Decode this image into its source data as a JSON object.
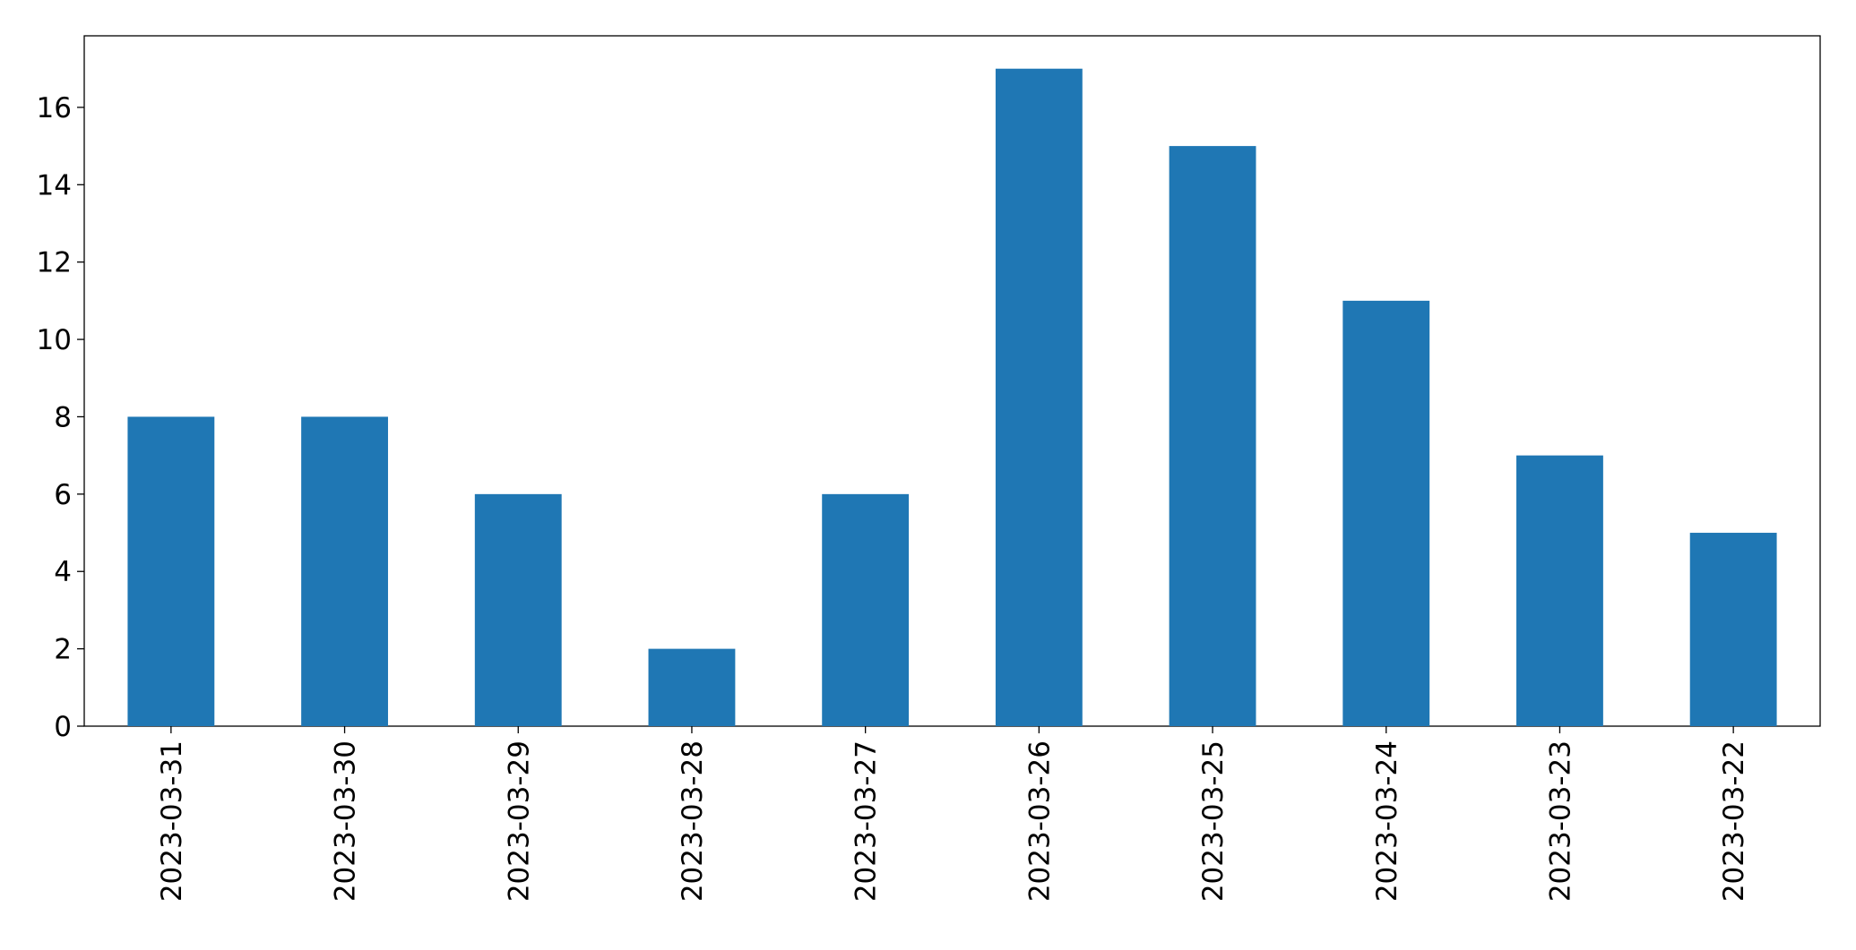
{
  "chart_data": {
    "type": "bar",
    "categories": [
      "2023-03-31",
      "2023-03-30",
      "2023-03-29",
      "2023-03-28",
      "2023-03-27",
      "2023-03-26",
      "2023-03-25",
      "2023-03-24",
      "2023-03-23",
      "2023-03-22"
    ],
    "values": [
      8,
      8,
      6,
      2,
      6,
      17,
      15,
      11,
      7,
      5
    ],
    "color": "#1f77b4",
    "ylim": [
      0,
      17.85
    ],
    "yticks": [
      0,
      2,
      4,
      6,
      8,
      10,
      12,
      14,
      16
    ],
    "grid": false
  }
}
